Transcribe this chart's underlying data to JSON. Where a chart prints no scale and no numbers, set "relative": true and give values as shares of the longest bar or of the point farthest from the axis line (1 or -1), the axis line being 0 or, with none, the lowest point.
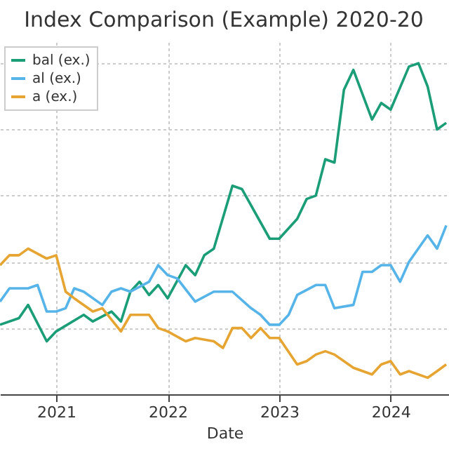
{
  "chart_data": {
    "type": "line",
    "title": "Index Comparison (Example) 2020-20",
    "xlabel": "Date",
    "relative": true,
    "xlim": [
      "2020-07-01",
      "2024-07-10"
    ],
    "xticks": [
      "2021",
      "2022",
      "2023",
      "2024"
    ],
    "grid": true,
    "legend": "top left",
    "line_style": "solid",
    "marker": "none",
    "series": [
      {
        "name": "bal (ex.)",
        "color": "#1b9e77",
        "x": [
          "2020-07",
          "2020-09",
          "2020-10",
          "2020-12",
          "2021-01",
          "2021-04",
          "2021-05",
          "2021-07",
          "2021-08",
          "2021-09",
          "2021-10",
          "2021-11",
          "2021-12",
          "2022-01",
          "2022-03",
          "2022-04",
          "2022-05",
          "2022-06",
          "2022-08",
          "2022-09",
          "2022-12",
          "2023-01",
          "2023-03",
          "2023-04",
          "2023-05",
          "2023-06",
          "2023-07",
          "2023-08",
          "2023-09",
          "2023-11",
          "2023-12",
          "2024-01",
          "2024-03",
          "2024-04",
          "2024-05",
          "2024-06",
          "2024-07"
        ],
        "values": [
          0.21,
          0.23,
          0.27,
          0.16,
          0.19,
          0.24,
          0.22,
          0.25,
          0.22,
          0.31,
          0.34,
          0.3,
          0.33,
          0.29,
          0.39,
          0.36,
          0.42,
          0.44,
          0.63,
          0.62,
          0.47,
          0.47,
          0.53,
          0.59,
          0.6,
          0.71,
          0.7,
          0.92,
          0.98,
          0.83,
          0.88,
          0.86,
          0.99,
          1.0,
          0.93,
          0.8,
          0.82
        ]
      },
      {
        "name": "al (ex.)",
        "color": "#56b4e9",
        "x": [
          "2020-07",
          "2020-08",
          "2020-10",
          "2020-11",
          "2020-12",
          "2021-01",
          "2021-02",
          "2021-03",
          "2021-04",
          "2021-06",
          "2021-07",
          "2021-08",
          "2021-09",
          "2021-11",
          "2021-12",
          "2022-01",
          "2022-02",
          "2022-04",
          "2022-06",
          "2022-08",
          "2022-10",
          "2022-11",
          "2022-12",
          "2023-01",
          "2023-02",
          "2023-03",
          "2023-05",
          "2023-06",
          "2023-07",
          "2023-09",
          "2023-10",
          "2023-11",
          "2023-12",
          "2024-01",
          "2024-02",
          "2024-03",
          "2024-05",
          "2024-06",
          "2024-07"
        ],
        "values": [
          0.28,
          0.32,
          0.32,
          0.33,
          0.25,
          0.25,
          0.26,
          0.32,
          0.31,
          0.27,
          0.31,
          0.32,
          0.31,
          0.34,
          0.39,
          0.36,
          0.35,
          0.28,
          0.31,
          0.31,
          0.26,
          0.24,
          0.21,
          0.21,
          0.24,
          0.3,
          0.33,
          0.33,
          0.26,
          0.27,
          0.37,
          0.37,
          0.39,
          0.39,
          0.34,
          0.4,
          0.48,
          0.44,
          0.51
        ]
      },
      {
        "name": "a (ex.)",
        "color": "#e6a532",
        "x": [
          "2020-07",
          "2020-08",
          "2020-09",
          "2020-10",
          "2020-12",
          "2021-01",
          "2021-02",
          "2021-03",
          "2021-05",
          "2021-06",
          "2021-08",
          "2021-09",
          "2021-11",
          "2021-12",
          "2022-01",
          "2022-03",
          "2022-04",
          "2022-06",
          "2022-07",
          "2022-08",
          "2022-09",
          "2022-10",
          "2022-11",
          "2022-12",
          "2023-01",
          "2023-03",
          "2023-04",
          "2023-05",
          "2023-06",
          "2023-07",
          "2023-09",
          "2023-11",
          "2023-12",
          "2024-01",
          "2024-02",
          "2024-03",
          "2024-05",
          "2024-06",
          "2024-07"
        ],
        "values": [
          0.39,
          0.42,
          0.42,
          0.44,
          0.41,
          0.42,
          0.31,
          0.29,
          0.25,
          0.26,
          0.19,
          0.24,
          0.24,
          0.2,
          0.19,
          0.16,
          0.17,
          0.16,
          0.14,
          0.2,
          0.2,
          0.17,
          0.2,
          0.17,
          0.17,
          0.09,
          0.1,
          0.12,
          0.13,
          0.12,
          0.08,
          0.06,
          0.09,
          0.1,
          0.06,
          0.07,
          0.05,
          0.07,
          0.09
        ]
      }
    ]
  }
}
